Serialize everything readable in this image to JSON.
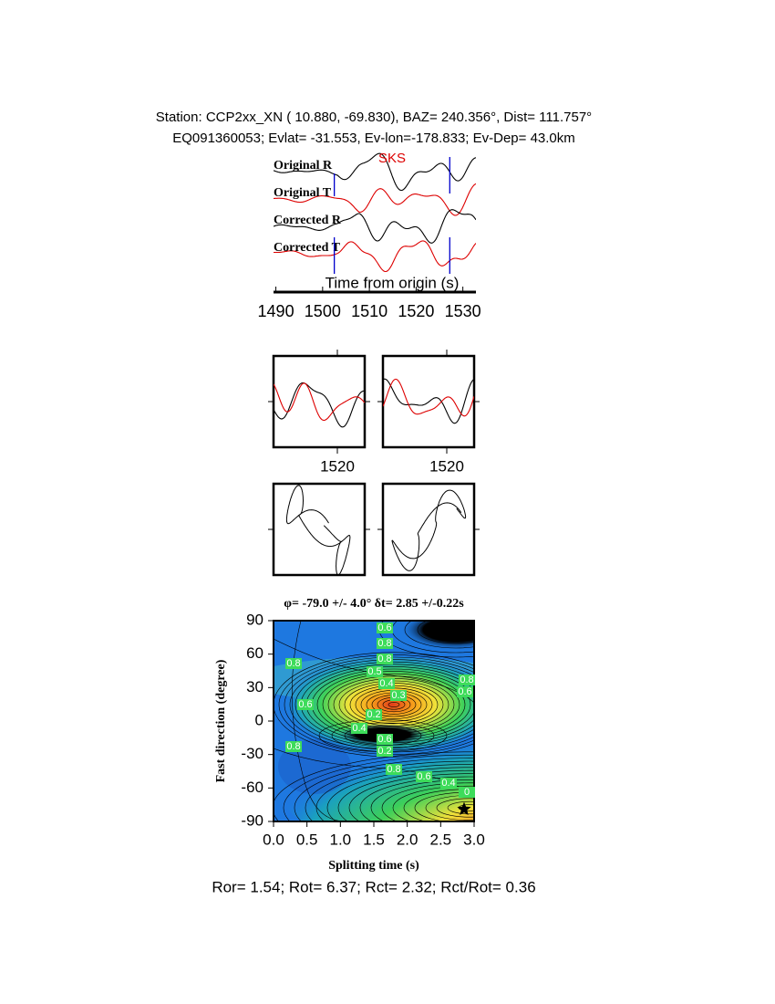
{
  "header": {
    "line1": "Station: CCP2xx_XN (  10.880,  -69.830), BAZ=  240.356°, Dist=  111.757°",
    "line2": "EQ091360053; Evlat= -31.553, Ev-lon=-178.833; Ev-Dep= 43.0km"
  },
  "chart_data": [
    {
      "type": "seismogram",
      "trace_labels": [
        "Original R",
        "Original T",
        "Corrected R",
        "Corrected T"
      ],
      "phase": "SKS",
      "xlabel": "Time from origin (s)",
      "xlim": [
        1489.5,
        1532.8
      ],
      "xticks": [
        1490,
        1500,
        1510,
        1520,
        1530
      ],
      "picks": [
        1502.5,
        1527.2
      ]
    },
    {
      "type": "waveform",
      "panels": [
        {
          "xlim": [
            1499,
            1529
          ],
          "xticks": [
            1520
          ]
        },
        {
          "xlim": [
            1499,
            1529
          ],
          "xticks": [
            1520
          ]
        }
      ]
    },
    {
      "type": "particle-motion"
    },
    {
      "type": "contour",
      "title": "φ= -79.0 +/- 4.0° δt= 2.85 +/-0.22s",
      "xlabel": "Splitting time (s)",
      "ylabel": "Fast direction (degree)",
      "xlim": [
        0,
        3
      ],
      "ylim": [
        -90,
        90
      ],
      "xticks": [
        {
          "value": 0,
          "label": "0.0"
        },
        {
          "value": 0.5,
          "label": "0.5"
        },
        {
          "value": 1,
          "label": "1.0"
        },
        {
          "value": 1.5,
          "label": "1.5"
        },
        {
          "value": 2,
          "label": "2.0"
        },
        {
          "value": 2.5,
          "label": "2.5"
        },
        {
          "value": 3,
          "label": "3.0"
        }
      ],
      "yticks": [
        -90,
        -60,
        -30,
        0,
        30,
        60,
        90
      ],
      "contour_labels": [
        "0.6",
        "0.8",
        "0.8",
        "0.8",
        "0.5",
        "0.4",
        "0.3",
        "0.6",
        "0.2",
        "0.4",
        "0.6",
        "0.2",
        "0.8",
        "0.8",
        "0.6",
        "0.4",
        "0",
        "0.6",
        "0.8"
      ],
      "marker": {
        "x": 2.85,
        "y": -79
      }
    }
  ],
  "footer": "Ror= 1.54; Rot= 6.37; Rct= 2.32; Rct/Rot= 0.36"
}
